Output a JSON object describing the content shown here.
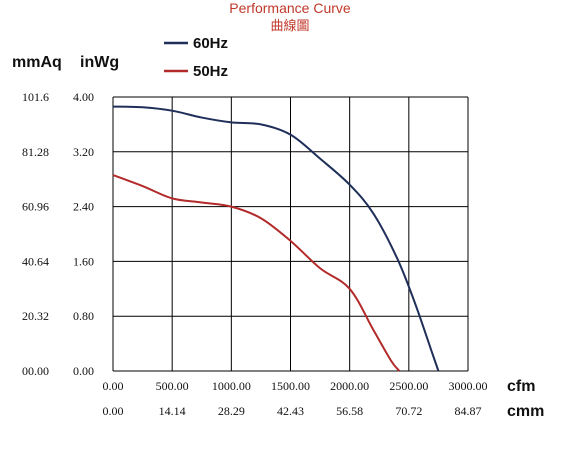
{
  "chart_data": {
    "type": "line",
    "title": "Performance Curve",
    "subtitle": "曲線圖",
    "y_units": {
      "left": "mmAq",
      "right": "inWg"
    },
    "x_units": {
      "primary": "cfm",
      "secondary": "cmm"
    },
    "x_ticks_cfm": [
      "0.00",
      "500.00",
      "1000.00",
      "1500.00",
      "2000.00",
      "2500.00",
      "3000.00"
    ],
    "x_ticks_cmm": [
      "0.00",
      "14.14",
      "28.29",
      "42.43",
      "56.58",
      "70.72",
      "84.87"
    ],
    "y_ticks_inwg": [
      "0.00",
      "0.80",
      "1.60",
      "2.40",
      "3.20",
      "4.00"
    ],
    "y_ticks_mmaq": [
      "00.00",
      "20.32",
      "40.64",
      "60.96",
      "81.28",
      "101.6"
    ],
    "xlim": [
      0,
      3000
    ],
    "ylim": [
      0,
      4.0
    ],
    "grid": true,
    "legend": "top",
    "series": [
      {
        "name": "60Hz",
        "color": "#1f2f5a",
        "x": [
          0,
          250,
          500,
          750,
          1000,
          1250,
          1500,
          1750,
          2000,
          2200,
          2400,
          2550,
          2700,
          2750
        ],
        "y": [
          3.86,
          3.85,
          3.8,
          3.7,
          3.63,
          3.6,
          3.45,
          3.1,
          2.72,
          2.3,
          1.65,
          1.0,
          0.25,
          0.0
        ]
      },
      {
        "name": "50Hz",
        "color": "#b22a2a",
        "x": [
          0,
          250,
          500,
          750,
          1000,
          1250,
          1500,
          1750,
          2000,
          2200,
          2350,
          2420
        ],
        "y": [
          2.86,
          2.7,
          2.52,
          2.46,
          2.4,
          2.23,
          1.9,
          1.5,
          1.2,
          0.6,
          0.15,
          0.0
        ]
      }
    ]
  }
}
